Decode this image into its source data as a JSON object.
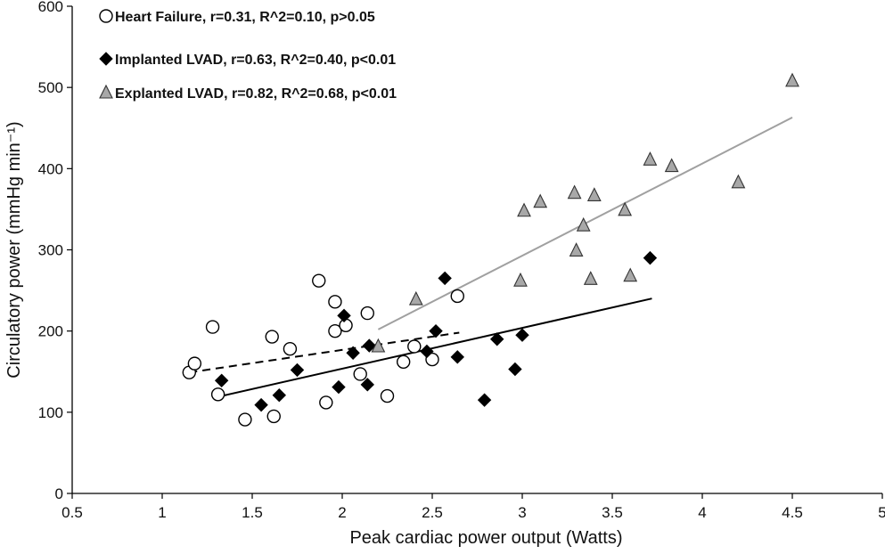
{
  "chart_data": {
    "type": "scatter",
    "xlabel": "Peak cardiac power output (Watts)",
    "ylabel": "Circulatory power (mmHg min⁻¹)",
    "xlim": [
      0.5,
      5
    ],
    "ylim": [
      0,
      600
    ],
    "x_ticks": [
      "0.5",
      "1",
      "1.5",
      "2",
      "2.5",
      "3",
      "3.5",
      "4",
      "4.5",
      "5"
    ],
    "y_ticks": [
      "0",
      "100",
      "200",
      "300",
      "400",
      "500",
      "600"
    ],
    "grid": false,
    "legend_position": "top-left",
    "series": [
      {
        "name": "Heart Failure, r=0.31, R^2=0.10, p>0.05",
        "marker": "circle-open",
        "color": "#ffffff",
        "stroke": "#000000",
        "points": [
          [
            1.15,
            149
          ],
          [
            1.18,
            160
          ],
          [
            1.28,
            205
          ],
          [
            1.31,
            122
          ],
          [
            1.46,
            91
          ],
          [
            1.61,
            193
          ],
          [
            1.62,
            95
          ],
          [
            1.71,
            178
          ],
          [
            1.87,
            262
          ],
          [
            1.91,
            112
          ],
          [
            1.96,
            236
          ],
          [
            1.96,
            200
          ],
          [
            2.02,
            207
          ],
          [
            2.1,
            147
          ],
          [
            2.14,
            222
          ],
          [
            2.25,
            120
          ],
          [
            2.34,
            162
          ],
          [
            2.4,
            181
          ],
          [
            2.5,
            165
          ],
          [
            2.64,
            243
          ]
        ],
        "fit": {
          "x": [
            1.15,
            2.65
          ],
          "y": [
            149,
            198
          ],
          "style": "dashed",
          "color": "#000000"
        }
      },
      {
        "name": "Implanted LVAD, r=0.63, R^2=0.40, p<0.01",
        "marker": "diamond-filled",
        "color": "#000000",
        "stroke": "#000000",
        "points": [
          [
            1.33,
            139
          ],
          [
            1.55,
            109
          ],
          [
            1.65,
            121
          ],
          [
            1.75,
            152
          ],
          [
            1.98,
            131
          ],
          [
            2.01,
            219
          ],
          [
            2.06,
            173
          ],
          [
            2.14,
            134
          ],
          [
            2.15,
            182
          ],
          [
            2.47,
            175
          ],
          [
            2.52,
            200
          ],
          [
            2.57,
            265
          ],
          [
            2.64,
            168
          ],
          [
            2.79,
            115
          ],
          [
            2.86,
            190
          ],
          [
            2.96,
            153
          ],
          [
            3.0,
            195
          ],
          [
            3.71,
            290
          ]
        ],
        "fit": {
          "x": [
            1.33,
            3.72
          ],
          "y": [
            120,
            240
          ],
          "style": "solid",
          "color": "#000000"
        }
      },
      {
        "name": "Explanted LVAD, r=0.82, R^2=0.68, p<0.01",
        "marker": "triangle-filled",
        "color": "#a8a8a8",
        "stroke": "#333333",
        "points": [
          [
            2.2,
            181
          ],
          [
            2.41,
            239
          ],
          [
            2.99,
            262
          ],
          [
            3.01,
            348
          ],
          [
            3.1,
            359
          ],
          [
            3.29,
            370
          ],
          [
            3.3,
            299
          ],
          [
            3.34,
            330
          ],
          [
            3.38,
            264
          ],
          [
            3.4,
            367
          ],
          [
            3.57,
            349
          ],
          [
            3.6,
            268
          ],
          [
            3.71,
            411
          ],
          [
            3.83,
            403
          ],
          [
            4.2,
            383
          ],
          [
            4.5,
            508
          ]
        ],
        "fit": {
          "x": [
            2.2,
            4.5
          ],
          "y": [
            202,
            463
          ],
          "style": "solid",
          "color": "#a0a0a0"
        }
      }
    ]
  }
}
